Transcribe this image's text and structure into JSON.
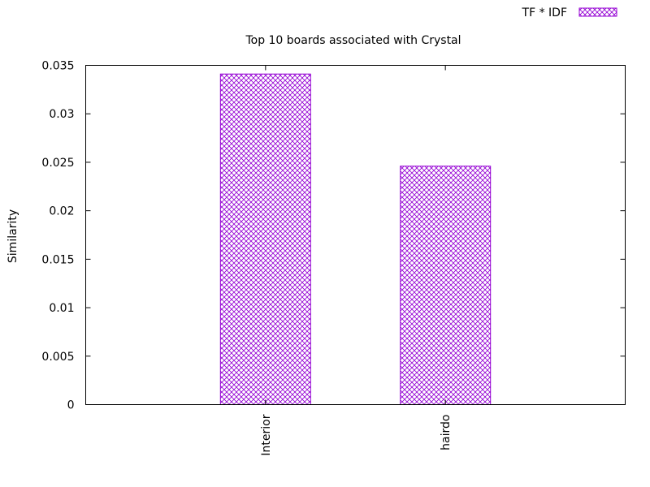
{
  "chart_data": {
    "type": "bar",
    "title": "Top 10 boards associated with Crystal",
    "xlabel": "",
    "ylabel": "Similarity",
    "categories": [
      "Interior",
      "hairdo"
    ],
    "series": [
      {
        "name": "TF * IDF",
        "values": [
          0.0341,
          0.0246
        ],
        "color": "#9400d3",
        "pattern": "crosshatch"
      }
    ],
    "ylim": [
      0,
      0.035
    ],
    "yticks": [
      "0",
      "0.005",
      "0.01",
      "0.015",
      "0.02",
      "0.025",
      "0.03",
      "0.035"
    ],
    "ytick_values": [
      0,
      0.005,
      0.01,
      0.015,
      0.02,
      0.025,
      0.03,
      0.035
    ],
    "grid": false,
    "legend_position": "top-right"
  }
}
